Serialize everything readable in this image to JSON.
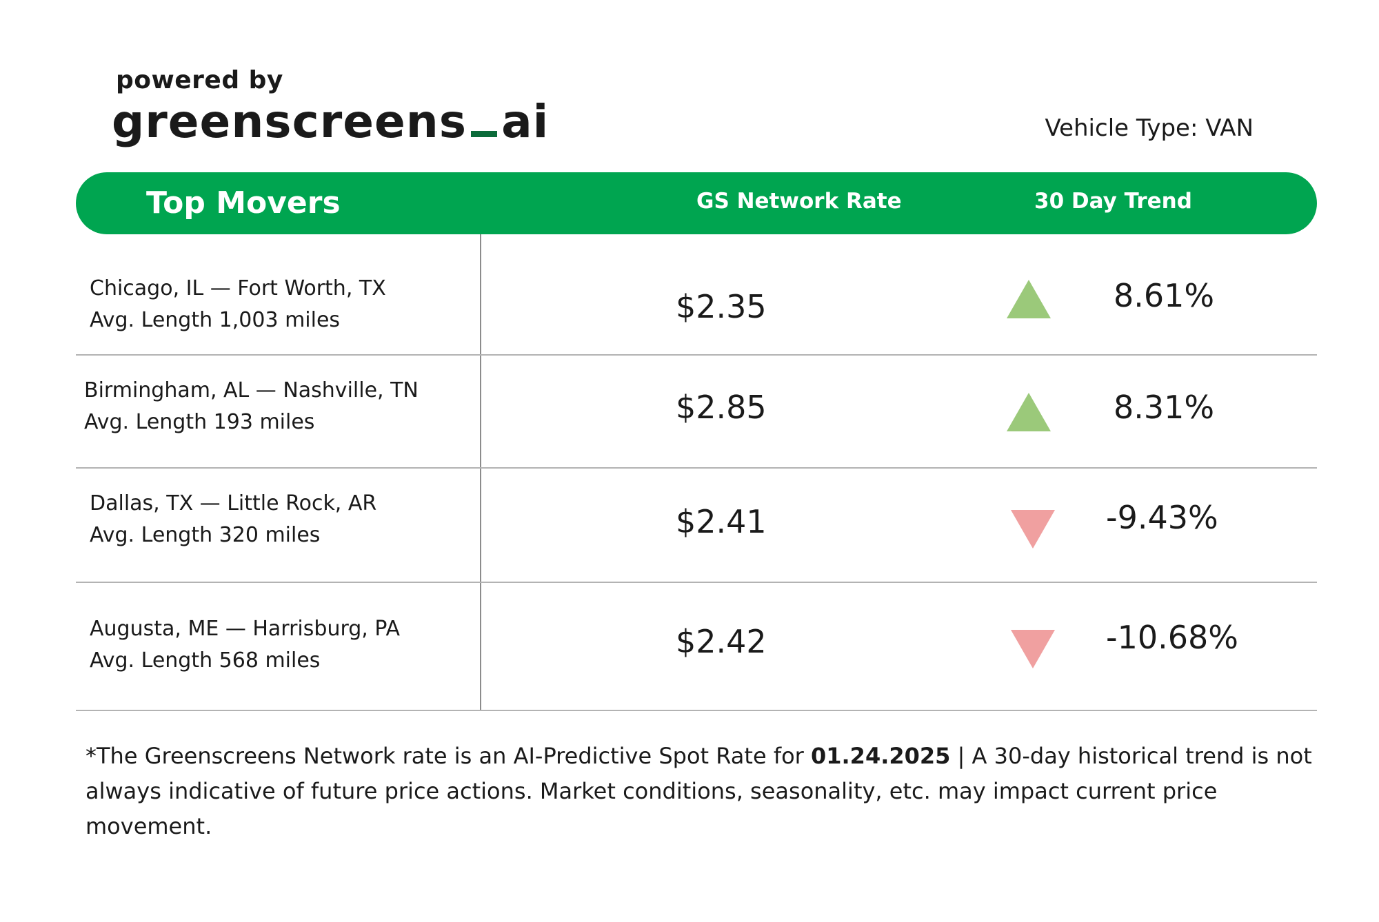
{
  "brand": {
    "powered_by": "powered by",
    "name_left": "greenscreens",
    "name_right": "ai",
    "accent_color": "#0b6b3a"
  },
  "vehicle_type": "Vehicle Type: VAN",
  "header": {
    "col1": "Top Movers",
    "col2": "GS Network Rate",
    "col3": "30 Day Trend",
    "bar_color": "#00a550"
  },
  "rows": [
    {
      "lane": "Chicago, IL — Fort Worth, TX",
      "length": "Avg. Length 1,003 miles",
      "rate": "$2.35",
      "direction": "up",
      "trend": "8.61%"
    },
    {
      "lane": "Birmingham, AL — Nashville, TN",
      "length": "Avg. Length 193 miles",
      "rate": "$2.85",
      "direction": "up",
      "trend": "8.31%"
    },
    {
      "lane": "Dallas, TX — Little Rock, AR",
      "length": "Avg. Length 320 miles",
      "rate": "$2.41",
      "direction": "down",
      "trend": "-9.43%"
    },
    {
      "lane": "Augusta, ME — Harrisburg, PA",
      "length": "Avg. Length 568 miles",
      "rate": "$2.42",
      "direction": "down",
      "trend": "-10.68%"
    }
  ],
  "trend_colors": {
    "up": "#9bc97a",
    "down": "#f0a0a0"
  },
  "footnote": {
    "part1": "*The Greenscreens Network rate is an AI-Predictive Spot Rate for ",
    "date": "01.24.2025",
    "part2": " | A 30-day historical trend is not always indicative of future price actions. Market conditions, seasonality, etc. may impact current price movement."
  }
}
